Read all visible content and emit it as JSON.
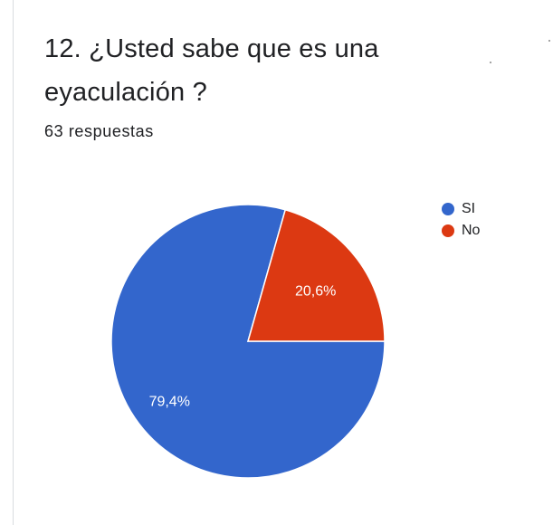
{
  "question": {
    "title": "12.  ¿Usted sabe que es una eyaculación ?",
    "responses": "63 respuestas"
  },
  "chart_data": {
    "type": "pie",
    "title": "",
    "series": [
      {
        "name": "SI",
        "value": 79.4,
        "label": "79,4%",
        "color": "#3366cc"
      },
      {
        "name": "No",
        "value": 20.6,
        "label": "20,6%",
        "color": "#dc3912"
      }
    ],
    "legend": "top-right"
  }
}
